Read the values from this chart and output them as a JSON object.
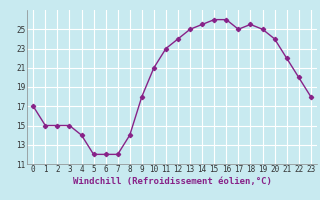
{
  "x": [
    0,
    1,
    2,
    3,
    4,
    5,
    6,
    7,
    8,
    9,
    10,
    11,
    12,
    13,
    14,
    15,
    16,
    17,
    18,
    19,
    20,
    21,
    22,
    23
  ],
  "y": [
    17.0,
    15.0,
    15.0,
    15.0,
    14.0,
    12.0,
    12.0,
    12.0,
    14.0,
    18.0,
    21.0,
    23.0,
    24.0,
    25.0,
    25.5,
    26.0,
    26.0,
    25.0,
    25.5,
    25.0,
    24.0,
    22.0,
    20.0,
    18.0
  ],
  "line_color": "#882288",
  "marker": "D",
  "marker_size": 2.2,
  "xlabel": "Windchill (Refroidissement éolien,°C)",
  "xlabel_fontsize": 6.5,
  "xlim": [
    -0.5,
    23.5
  ],
  "ylim": [
    11,
    27
  ],
  "yticks": [
    11,
    13,
    15,
    17,
    19,
    21,
    23,
    25
  ],
  "xtick_labels": [
    "0",
    "1",
    "2",
    "3",
    "4",
    "5",
    "6",
    "7",
    "8",
    "9",
    "10",
    "11",
    "12",
    "13",
    "14",
    "15",
    "16",
    "17",
    "18",
    "19",
    "20",
    "21",
    "22",
    "23"
  ],
  "background_color": "#c8eaf0",
  "grid_color": "#b0d8e0",
  "tick_fontsize": 5.5,
  "linewidth": 1.0
}
